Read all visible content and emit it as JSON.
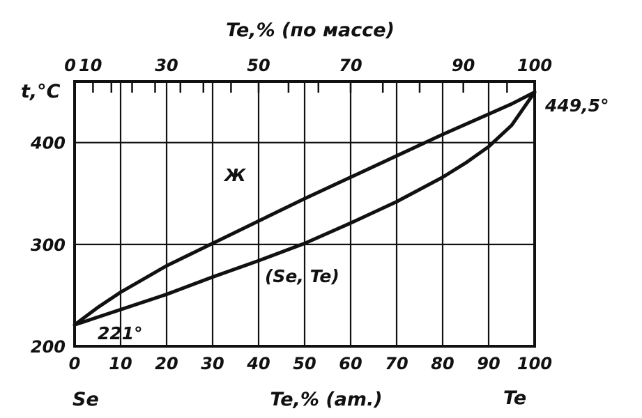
{
  "chart_data": {
    "type": "line",
    "title": "",
    "xlabel_bottom": "Te,% (am.)",
    "xlabel_top": "Te,% (по массе)",
    "ylabel": "t,°C",
    "element_left": "Se",
    "element_right": "Te",
    "xlim": [
      0,
      100
    ],
    "ylim": [
      200,
      460
    ],
    "grid": true,
    "x_ticks_bottom": [
      "0",
      "10",
      "20",
      "30",
      "40",
      "50",
      "60",
      "70",
      "80",
      "90",
      "100"
    ],
    "x_ticks_top": [
      {
        "label": "0",
        "at": 0
      },
      {
        "label": "10",
        "at": 4
      },
      {
        "label": "30",
        "at": 20
      },
      {
        "label": "50",
        "at": 40
      },
      {
        "label": "70",
        "at": 60
      },
      {
        "label": "90",
        "at": 84.5
      },
      {
        "label": "100",
        "at": 100
      }
    ],
    "top_minor_marks": [
      0,
      4,
      8,
      12.5,
      17.5,
      23,
      28,
      34,
      40,
      46.5,
      53,
      60,
      67,
      75,
      84.5,
      94
    ],
    "y_ticks": [
      {
        "label": "200",
        "at": 200
      },
      {
        "label": "300",
        "at": 300
      },
      {
        "label": "400",
        "at": 400
      }
    ],
    "series": [
      {
        "name": "",
        "x": [
          0,
          5,
          10,
          15,
          20,
          30,
          40,
          50,
          60,
          70,
          80,
          90,
          95,
          100
        ],
        "y": [
          221,
          238,
          253,
          266,
          279,
          301,
          323,
          345,
          366,
          387,
          408,
          428,
          438,
          449.5
        ]
      },
      {
        "name": "",
        "x": [
          0,
          10,
          20,
          30,
          40,
          50,
          60,
          70,
          80,
          85,
          90,
          95,
          100
        ],
        "y": [
          221,
          236,
          251,
          268,
          284,
          301,
          321,
          342,
          366,
          380,
          396,
          417,
          449.5
        ]
      }
    ],
    "annotations": [
      {
        "text": "449,5°",
        "x": 100,
        "y": 449.5
      },
      {
        "text": "221°",
        "x": 9,
        "y": 218
      },
      {
        "text": "Ж",
        "x": 35,
        "y": 375
      },
      {
        "text": "(Se, Te)",
        "x": 52,
        "y": 275
      }
    ]
  }
}
